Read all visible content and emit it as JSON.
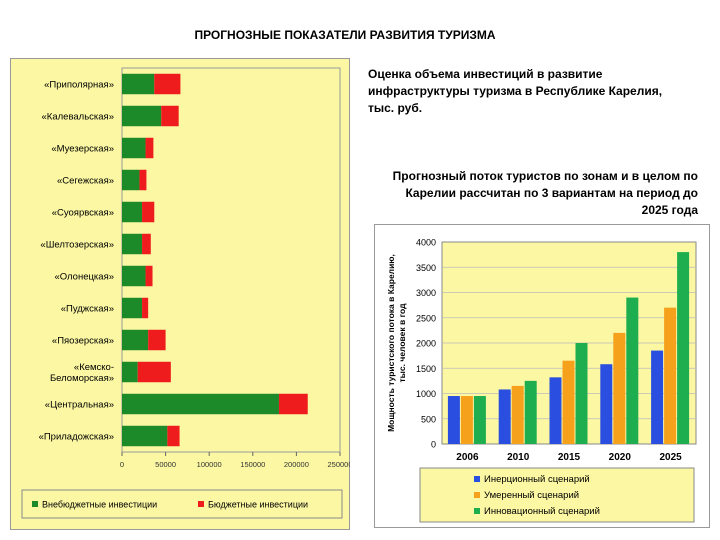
{
  "title": "ПРОГНОЗНЫЕ ПОКАЗАТЕЛИ РАЗВИТИЯ ТУРИЗМА",
  "investment_description": "Оценка объема инвестиций в развитие инфраструктуры туризма в Республике Карелия, тыс. руб.",
  "flow_description": "Прогнозный поток туристов по зонам и в целом по Карелии рассчитан по 3 вариантам на период до 2025 года",
  "colors": {
    "plot_bg": "#fbf7a3",
    "panel_bg": "#ffffff",
    "offbudget": "#1d8a2a",
    "budget": "#ee1c1c",
    "inertial": "#2a4fe0",
    "moderate": "#f6a11c",
    "innovation": "#1fae4f"
  },
  "chart_data": [
    {
      "type": "bar",
      "orientation": "horizontal",
      "stacked": true,
      "categories": [
        "«Приполярная»",
        "«Калевальская»",
        "«Муезерская»",
        "«Сегежская»",
        "«Суоярвская»",
        "«Шелтозерская»",
        "«Олонецкая»",
        "«Пуджская»",
        "«Пяозерская»",
        "«Кемско-Беломорская»",
        "«Центральная»",
        "«Приладожская»"
      ],
      "category_lines": [
        [
          "«Приполярная»"
        ],
        [
          "«Калевальская»"
        ],
        [
          "«Муезерская»"
        ],
        [
          "«Сегежская»"
        ],
        [
          "«Суоярвская»"
        ],
        [
          "«Шелтозерская»"
        ],
        [
          "«Олонецкая»"
        ],
        [
          "«Пуджская»"
        ],
        [
          "«Пяозерская»"
        ],
        [
          "«Кемско-",
          "Беломорская»"
        ],
        [
          "«Центральная»"
        ],
        [
          "«Приладожская»"
        ]
      ],
      "series": [
        {
          "name": "Внебюджетные инвестиции",
          "values": [
            37000,
            45000,
            27000,
            20000,
            23000,
            23000,
            27000,
            23000,
            30000,
            18000,
            180000,
            52000
          ]
        },
        {
          "name": "Бюджетные инвестиции",
          "values": [
            30000,
            20000,
            9000,
            8000,
            14000,
            10000,
            8000,
            7000,
            20000,
            38000,
            33000,
            14000
          ]
        }
      ],
      "xlim": [
        0,
        250000
      ],
      "xticks": [
        "0",
        "50000",
        "100000",
        "150000",
        "200000",
        "250000"
      ]
    },
    {
      "type": "bar",
      "categories": [
        "2006",
        "2010",
        "2015",
        "2020",
        "2025"
      ],
      "series": [
        {
          "name": "Инерционный сценарий",
          "values": [
            950,
            1080,
            1320,
            1580,
            1850
          ]
        },
        {
          "name": "Умеренный сценарий",
          "values": [
            950,
            1150,
            1650,
            2200,
            2700
          ]
        },
        {
          "name": "Инновационный сценарий",
          "values": [
            950,
            1250,
            2000,
            2900,
            3800
          ]
        }
      ],
      "ylabel_lines": [
        "Мощность туристского потока в Карелию,",
        "тыс. человек в год"
      ],
      "ylim": [
        0,
        4000
      ],
      "yticks": [
        "0",
        "500",
        "1000",
        "1500",
        "2000",
        "2500",
        "3000",
        "3500",
        "4000"
      ]
    }
  ]
}
